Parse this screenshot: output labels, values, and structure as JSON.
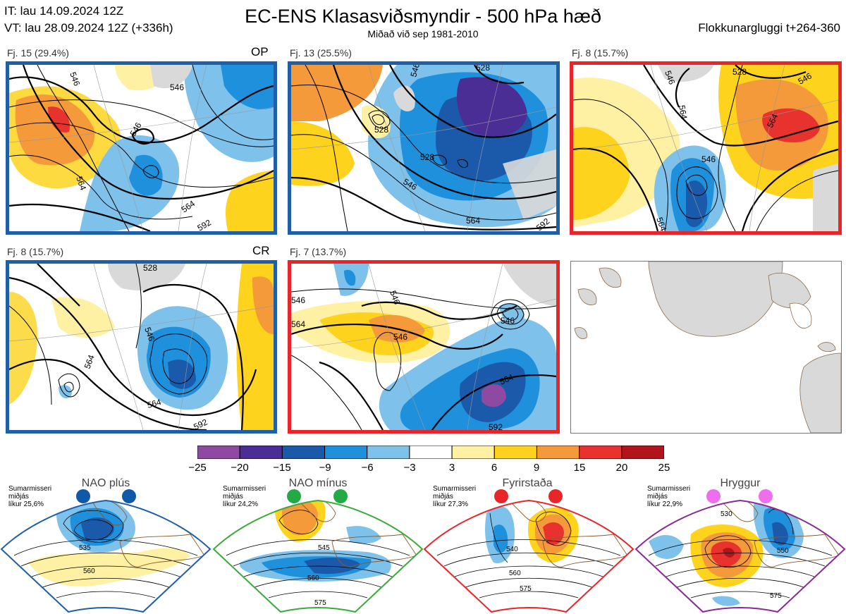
{
  "header": {
    "it_line": "IT: lau 14.09.2024 12Z",
    "vt_line": "VT: lau 28.09.2024 12Z  (+336h)",
    "title": "EC-ENS Klasasviðsmyndir - 500 hPa hæð",
    "subtitle": "Miðað við sep 1981-2010",
    "window": "Flokkunargluggi t+264-360"
  },
  "panels": [
    {
      "label": "Fj. 15 (29.4%)",
      "tag": "OP",
      "border": "#1f5fa8",
      "contours": [
        "546",
        "564",
        "546",
        "546",
        "564",
        "592"
      ]
    },
    {
      "label": "Fj. 13 (25.5%)",
      "tag": "",
      "border": "#1f5fa8",
      "contours": [
        "528",
        "546",
        "528",
        "528",
        "546",
        "564",
        "592"
      ]
    },
    {
      "label": "Fj. 8 (15.7%)",
      "tag": "",
      "border": "#e8262a",
      "contours": [
        "546",
        "528",
        "546",
        "564",
        "546",
        "564",
        "564"
      ]
    },
    {
      "label": "Fj. 8 (15.7%)",
      "tag": "CR",
      "border": "#1f5fa8",
      "contours": [
        "528",
        "546",
        "564",
        "564",
        "592"
      ]
    },
    {
      "label": "Fj. 7 (13.7%)",
      "tag": "",
      "border": "#e8262a",
      "contours": [
        "546",
        "546",
        "546",
        "564",
        "564",
        "546",
        "592"
      ]
    }
  ],
  "colorbar": {
    "colors": [
      "#8e4aa3",
      "#4b2d96",
      "#1b5aaa",
      "#1e90dc",
      "#7ec2ec",
      "#ffffff",
      "#fff1a3",
      "#fdd31e",
      "#f49a3a",
      "#e8322e",
      "#b3141b"
    ],
    "labels": [
      "−25",
      "−20",
      "−15",
      "−9",
      "−6",
      "−3",
      "3",
      "6",
      "9",
      "15",
      "20",
      "25"
    ]
  },
  "regimes": [
    {
      "name": "NAO plús",
      "season": "Sumarmisseri",
      "stat": "miðjás",
      "prob": "líkur 25,6%",
      "color": "#1f5fa8",
      "dots": "#1058a8",
      "contours": [
        "535",
        "560"
      ]
    },
    {
      "name": "NAO mínus",
      "season": "Sumarmisseri",
      "stat": "miðjás",
      "prob": "líkur 24,2%",
      "color": "#3aaa3a",
      "dots": "#22aa44",
      "contours": [
        "545",
        "560",
        "575"
      ]
    },
    {
      "name": "Fyrirstaða",
      "season": "Sumarmisseri",
      "stat": "miðjás",
      "prob": "líkur 27,3%",
      "color": "#e8262a",
      "dots": "#e8262a",
      "contours": [
        "540",
        "560",
        "575"
      ]
    },
    {
      "name": "Hryggur",
      "season": "Sumarmisseri",
      "stat": "miðjás",
      "prob": "líkur 22,9%",
      "color": "#8a2a96",
      "dots": "#ee6eee",
      "contours": [
        "530",
        "550",
        "575"
      ]
    }
  ]
}
